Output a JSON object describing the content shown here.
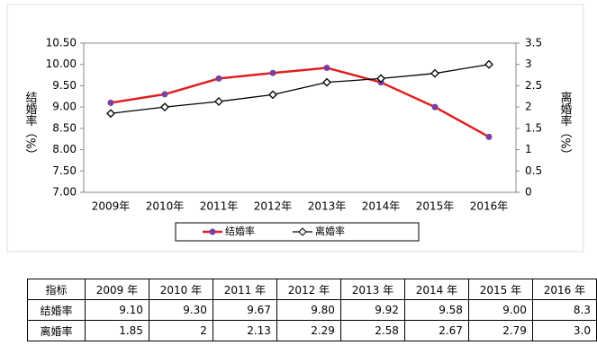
{
  "chart_data": {
    "type": "line",
    "y_label": "结婚率（%）",
    "y2_label": "离婚率（%）",
    "categories": [
      "2009年",
      "2010年",
      "2011年",
      "2012年",
      "2013年",
      "2014年",
      "2015年",
      "2016年"
    ],
    "series": [
      {
        "name": "结婚率",
        "color": "#e02020",
        "marker_color": "#7b3fa0",
        "values": [
          9.1,
          9.3,
          9.67,
          9.8,
          9.92,
          9.58,
          9.0,
          8.3
        ]
      },
      {
        "name": "离婚率",
        "color": "#000000",
        "axis": "y2",
        "values": [
          1.85,
          2,
          2.13,
          2.29,
          2.58,
          2.67,
          2.79,
          3.0
        ]
      }
    ],
    "ylim": [
      7,
      10.5
    ],
    "yticks": [
      {
        "value": 7,
        "label": "7.00"
      },
      {
        "value": 7.5,
        "label": "7.50"
      },
      {
        "value": 8,
        "label": "8.00"
      },
      {
        "value": 8.5,
        "label": "8.50"
      },
      {
        "value": 9,
        "label": "9.00"
      },
      {
        "value": 9.5,
        "label": "9.50"
      },
      {
        "value": 10,
        "label": "10.00"
      },
      {
        "value": 10.5,
        "label": "10.50"
      }
    ],
    "y2lim": [
      0,
      3.5
    ],
    "y2ticks": [
      0,
      0.5,
      1,
      1.5,
      2,
      2.5,
      3,
      3.5
    ],
    "legend": "bottom"
  },
  "table": {
    "header": [
      "指标",
      "2009 年",
      "2010 年",
      "2011 年",
      "2012 年",
      "2013 年",
      "2014 年",
      "2015 年",
      "2016 年"
    ],
    "rows": [
      [
        "结婚率",
        "9.10",
        "9.30",
        "9.67",
        "9.80",
        "9.92",
        "9.58",
        "9.00",
        "8.3"
      ],
      [
        "离婚率",
        "1.85",
        "2",
        "2.13",
        "2.29",
        "2.58",
        "2.67",
        "2.79",
        "3.0"
      ]
    ]
  }
}
